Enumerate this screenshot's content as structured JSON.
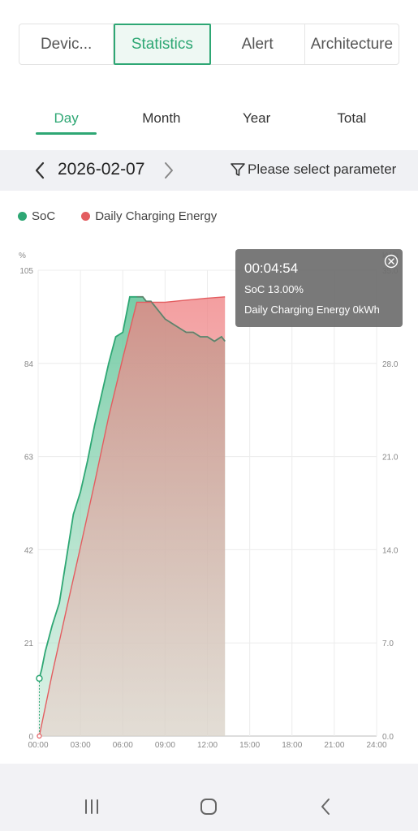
{
  "top_tabs": [
    "Devic...",
    "Statistics",
    "Alert",
    "Architecture"
  ],
  "period_tabs": [
    "Day",
    "Month",
    "Year",
    "Total"
  ],
  "date": "2026-02-07",
  "param_label": "Please select parameter",
  "legend": {
    "soc": "SoC",
    "energy": "Daily Charging Energy"
  },
  "colors": {
    "accent": "#2ea774",
    "soc": "#2ea774",
    "energy": "#e35d60"
  },
  "tooltip": {
    "time": "00:04:54",
    "soc_line": "SoC 13.00%",
    "energy_line": "Daily Charging Energy 0kWh"
  },
  "icons": [
    "chevron-left-icon",
    "chevron-right-icon",
    "filter-icon",
    "close-circle-icon",
    "recent-apps-icon",
    "home-icon",
    "back-icon"
  ],
  "chart_data": {
    "type": "area",
    "x_ticks": [
      "00:00",
      "03:00",
      "06:00",
      "09:00",
      "12:00",
      "15:00",
      "18:00",
      "21:00",
      "24:00"
    ],
    "xlim": [
      "00:00",
      "24:00"
    ],
    "y_left": {
      "unit": "%",
      "ticks": [
        "0",
        "21",
        "42",
        "63",
        "84",
        "105"
      ],
      "lim": [
        0,
        105
      ]
    },
    "y_right": {
      "unit": "kWh",
      "ticks": [
        "0.0",
        "7.0",
        "14.0",
        "21.0",
        "28.0",
        "35.0"
      ],
      "lim": [
        0,
        35
      ]
    },
    "grid": true,
    "legend_position": "top-left",
    "series": [
      {
        "name": "SoC",
        "axis": "left",
        "points": [
          [
            "00:05",
            13.0
          ],
          [
            "00:15",
            15
          ],
          [
            "00:30",
            19
          ],
          [
            "01:00",
            25
          ],
          [
            "01:30",
            30
          ],
          [
            "02:00",
            40
          ],
          [
            "02:30",
            50
          ],
          [
            "03:00",
            55
          ],
          [
            "03:30",
            62
          ],
          [
            "04:00",
            70
          ],
          [
            "04:30",
            77
          ],
          [
            "05:00",
            84
          ],
          [
            "05:30",
            90
          ],
          [
            "06:00",
            91
          ],
          [
            "06:30",
            99
          ],
          [
            "07:00",
            99
          ],
          [
            "07:25",
            99
          ],
          [
            "07:40",
            98
          ],
          [
            "08:00",
            98
          ],
          [
            "08:30",
            96
          ],
          [
            "09:00",
            94
          ],
          [
            "09:30",
            93
          ],
          [
            "10:00",
            92
          ],
          [
            "10:30",
            91
          ],
          [
            "11:00",
            91
          ],
          [
            "11:30",
            90
          ],
          [
            "12:00",
            90
          ],
          [
            "12:30",
            89
          ],
          [
            "13:00",
            90
          ],
          [
            "13:15",
            89
          ]
        ]
      },
      {
        "name": "Daily Charging Energy",
        "axis": "right",
        "points": [
          [
            "00:05",
            0
          ],
          [
            "01:00",
            4.7
          ],
          [
            "02:00",
            9.5
          ],
          [
            "03:00",
            14.2
          ],
          [
            "04:00",
            19
          ],
          [
            "05:00",
            24
          ],
          [
            "06:00",
            28.4
          ],
          [
            "07:00",
            32.6
          ],
          [
            "07:25",
            32.6
          ],
          [
            "09:00",
            32.6
          ],
          [
            "10:00",
            32.7
          ],
          [
            "11:00",
            32.8
          ],
          [
            "12:00",
            32.9
          ],
          [
            "13:15",
            33
          ]
        ]
      }
    ]
  }
}
